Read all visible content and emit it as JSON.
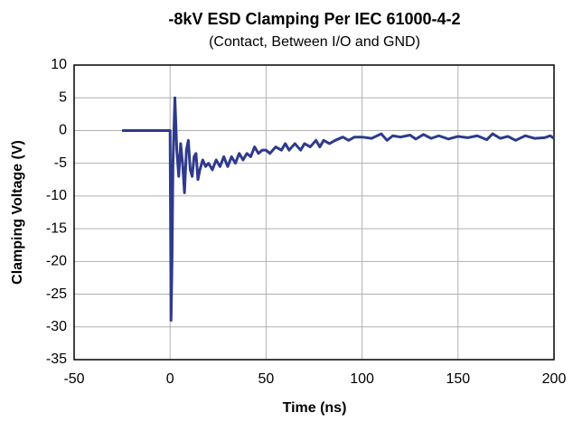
{
  "chart_data": {
    "type": "line",
    "title": "-8kV ESD Clamping Per IEC 61000-4-2",
    "subtitle": "(Contact, Between I/O and GND)",
    "x_label": "Time (ns)",
    "y_label": "Clamping Voltage (V)",
    "x": [
      -25,
      0,
      0.5,
      1,
      1.5,
      2.5,
      3.5,
      4.5,
      5.5,
      6.5,
      7.5,
      8.5,
      9.5,
      10.5,
      11.5,
      12.5,
      13.5,
      14.5,
      15.5,
      17,
      18.5,
      20,
      22,
      24,
      26,
      28,
      30,
      32,
      34,
      36,
      38,
      40,
      42,
      44,
      46,
      48,
      50,
      52,
      55,
      58,
      60,
      62,
      65,
      68,
      70,
      73,
      76,
      78,
      80,
      83,
      86,
      90,
      93,
      96,
      100,
      105,
      110,
      113,
      116,
      120,
      125,
      128,
      132,
      136,
      140,
      145,
      150,
      155,
      160,
      165,
      168,
      172,
      176,
      180,
      185,
      190,
      195,
      198,
      200
    ],
    "series": [
      {
        "color": "#2e3a8c",
        "values": [
          0,
          0,
          -29,
          -20,
          -5,
          5,
          -3,
          -7,
          -2,
          -5,
          -9.5,
          -3,
          -1.5,
          -6,
          -7,
          -4,
          -3.5,
          -7.5,
          -6,
          -4.5,
          -5.5,
          -5,
          -6,
          -4.5,
          -5.5,
          -4,
          -5.5,
          -4,
          -5,
          -3.5,
          -4.5,
          -3.5,
          -4,
          -2.5,
          -3.5,
          -3,
          -3,
          -3.5,
          -2.5,
          -3,
          -2,
          -3,
          -2,
          -3,
          -2,
          -2.5,
          -1.5,
          -2.5,
          -1.5,
          -2,
          -1.5,
          -1,
          -1.5,
          -1,
          -1,
          -1.2,
          -0.5,
          -1.5,
          -0.8,
          -1,
          -0.7,
          -1.3,
          -0.6,
          -1.2,
          -0.8,
          -1.3,
          -0.9,
          -1.1,
          -0.8,
          -1.4,
          -0.5,
          -1.2,
          -0.9,
          -1.5,
          -0.8,
          -1.2,
          -1.1,
          -0.8,
          -1.2
        ]
      }
    ],
    "xlim": [
      -50,
      200
    ],
    "xticks": [
      -50,
      0,
      50,
      100,
      150,
      200
    ],
    "ylim": [
      -35,
      10
    ],
    "yticks": [
      -35,
      -30,
      -25,
      -20,
      -15,
      -10,
      -5,
      0,
      5,
      10
    ],
    "grid": true
  }
}
